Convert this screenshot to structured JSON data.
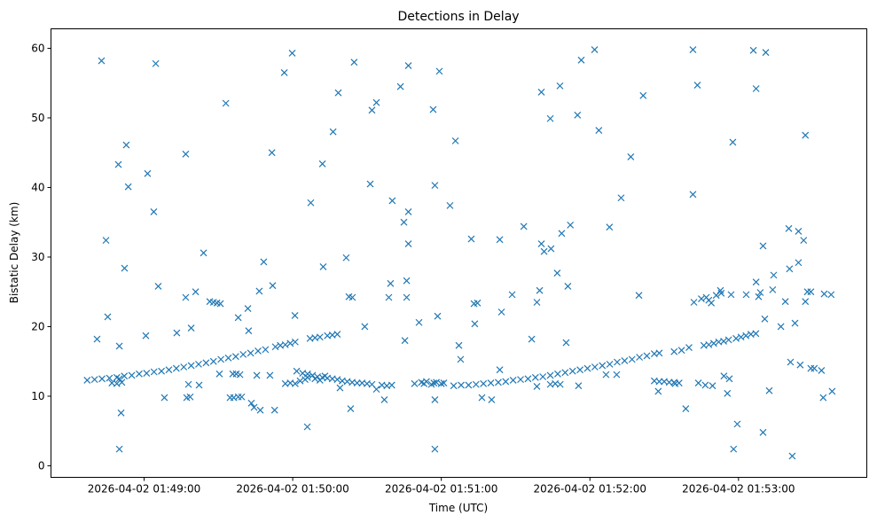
{
  "chart_data": {
    "type": "scatter",
    "title": "Detections in Delay",
    "xlabel": "Time (UTC)",
    "ylabel": "Bistatic Delay (km)",
    "x_units": "seconds after 2026-04-02 01:48:00 UTC",
    "xlim": [
      22.4,
      351.8
    ],
    "ylim": [
      -1.66,
      62.8
    ],
    "grid": false,
    "marker": "x",
    "color": "#1f77b4",
    "x_ticks": [
      {
        "value": 60,
        "label": "2026-04-02 01:49:00"
      },
      {
        "value": 120,
        "label": "2026-04-02 01:50:00"
      },
      {
        "value": 180,
        "label": "2026-04-02 01:51:00"
      },
      {
        "value": 240,
        "label": "2026-04-02 01:52:00"
      },
      {
        "value": 300,
        "label": "2026-04-02 01:53:00"
      }
    ],
    "y_ticks": [
      {
        "value": 0,
        "label": "0"
      },
      {
        "value": 10,
        "label": "10"
      },
      {
        "value": 20,
        "label": "20"
      },
      {
        "value": 30,
        "label": "30"
      },
      {
        "value": 40,
        "label": "40"
      },
      {
        "value": 50,
        "label": "50"
      },
      {
        "value": 60,
        "label": "60"
      }
    ],
    "points": [
      [
        37,
        12.3
      ],
      [
        40,
        12.4
      ],
      [
        43,
        12.5
      ],
      [
        46,
        12.6
      ],
      [
        49,
        12.7
      ],
      [
        52,
        12.9
      ],
      [
        55,
        13.0
      ],
      [
        58,
        13.2
      ],
      [
        61,
        13.3
      ],
      [
        64,
        13.5
      ],
      [
        67,
        13.6
      ],
      [
        70,
        13.8
      ],
      [
        73,
        14.0
      ],
      [
        76,
        14.2
      ],
      [
        79,
        14.4
      ],
      [
        82,
        14.6
      ],
      [
        85,
        14.8
      ],
      [
        88,
        15.0
      ],
      [
        91,
        15.3
      ],
      [
        94,
        15.5
      ],
      [
        97,
        15.7
      ],
      [
        100,
        16.0
      ],
      [
        103,
        16.2
      ],
      [
        106,
        16.5
      ],
      [
        109,
        16.7
      ],
      [
        113,
        17.1
      ],
      [
        115,
        17.3
      ],
      [
        117,
        17.4
      ],
      [
        119,
        17.6
      ],
      [
        121,
        17.8
      ],
      [
        47,
        11.9
      ],
      [
        49,
        11.8
      ],
      [
        51,
        12.0
      ],
      [
        50,
        12.5
      ],
      [
        127,
        18.3
      ],
      [
        129,
        18.4
      ],
      [
        131,
        18.5
      ],
      [
        134,
        18.7
      ],
      [
        136,
        18.8
      ],
      [
        138,
        18.9
      ],
      [
        117,
        11.8
      ],
      [
        119,
        11.9
      ],
      [
        121,
        11.8
      ],
      [
        123,
        12.2
      ],
      [
        125,
        12.4
      ],
      [
        124,
        13.3
      ],
      [
        126,
        13.2
      ],
      [
        128,
        13.0
      ],
      [
        130,
        12.8
      ],
      [
        132,
        12.7
      ],
      [
        134,
        12.6
      ],
      [
        136,
        12.5
      ],
      [
        138,
        12.4
      ],
      [
        140,
        12.2
      ],
      [
        142,
        12.1
      ],
      [
        144,
        12.0
      ],
      [
        146,
        11.9
      ],
      [
        148,
        11.9
      ],
      [
        150,
        11.8
      ],
      [
        152,
        11.7
      ],
      [
        126,
        12.7
      ],
      [
        129,
        12.5
      ],
      [
        131,
        12.3
      ],
      [
        133,
        12.9
      ],
      [
        156,
        11.6
      ],
      [
        158,
        11.5
      ],
      [
        160,
        11.6
      ],
      [
        172,
        12.0
      ],
      [
        173,
        11.8
      ],
      [
        174,
        12.1
      ],
      [
        176,
        11.7
      ],
      [
        177,
        11.9
      ],
      [
        178,
        12.0
      ],
      [
        180,
        11.8
      ],
      [
        181,
        11.9
      ],
      [
        185,
        11.5
      ],
      [
        188,
        11.6
      ],
      [
        191,
        11.6
      ],
      [
        194,
        11.7
      ],
      [
        197,
        11.8
      ],
      [
        200,
        11.9
      ],
      [
        203,
        12.0
      ],
      [
        206,
        12.1
      ],
      [
        209,
        12.3
      ],
      [
        212,
        12.4
      ],
      [
        215,
        12.5
      ],
      [
        218,
        12.7
      ],
      [
        221,
        12.8
      ],
      [
        224,
        13.0
      ],
      [
        227,
        13.2
      ],
      [
        230,
        13.4
      ],
      [
        233,
        13.6
      ],
      [
        236,
        13.8
      ],
      [
        239,
        14.0
      ],
      [
        242,
        14.2
      ],
      [
        245,
        14.4
      ],
      [
        248,
        14.6
      ],
      [
        251,
        14.9
      ],
      [
        254,
        15.1
      ],
      [
        257,
        15.3
      ],
      [
        260,
        15.6
      ],
      [
        263,
        15.8
      ],
      [
        266,
        16.1
      ],
      [
        268,
        16.2
      ],
      [
        224,
        11.7
      ],
      [
        226,
        11.8
      ],
      [
        228,
        11.7
      ],
      [
        266,
        12.2
      ],
      [
        268,
        12.1
      ],
      [
        270,
        12.1
      ],
      [
        272,
        12.0
      ],
      [
        274,
        12.0
      ],
      [
        276,
        11.9
      ],
      [
        274,
        16.4
      ],
      [
        277,
        16.6
      ],
      [
        280,
        17.0
      ],
      [
        286,
        17.3
      ],
      [
        288,
        17.4
      ],
      [
        290,
        17.6
      ],
      [
        292,
        17.8
      ],
      [
        294,
        17.9
      ],
      [
        296,
        18.1
      ],
      [
        299,
        18.3
      ],
      [
        301,
        18.5
      ],
      [
        303,
        18.7
      ],
      [
        305,
        18.9
      ],
      [
        307,
        19.0
      ],
      [
        285,
        24.0
      ],
      [
        287,
        24.2
      ],
      [
        289,
        23.4
      ],
      [
        291,
        24.5
      ],
      [
        293,
        24.8
      ],
      [
        288,
        23.8
      ],
      [
        41.0,
        18.2
      ],
      [
        42.8,
        58.2
      ],
      [
        44.6,
        32.4
      ],
      [
        45.3,
        21.4
      ],
      [
        49.6,
        43.3
      ],
      [
        50.0,
        17.2
      ],
      [
        50.7,
        7.6
      ],
      [
        50.0,
        2.4
      ],
      [
        52.1,
        28.4
      ],
      [
        52.8,
        46.1
      ],
      [
        53.6,
        40.1
      ],
      [
        60.7,
        18.7
      ],
      [
        61.4,
        42.0
      ],
      [
        63.9,
        36.5
      ],
      [
        64.7,
        57.8
      ],
      [
        65.7,
        25.8
      ],
      [
        68.2,
        9.8
      ],
      [
        73.2,
        19.1
      ],
      [
        76.8,
        44.8
      ],
      [
        76.8,
        24.2
      ],
      [
        77.2,
        9.8
      ],
      [
        77.9,
        11.7
      ],
      [
        79.0,
        19.8
      ],
      [
        78.6,
        9.9
      ],
      [
        80.8,
        25.0
      ],
      [
        82.2,
        11.6
      ],
      [
        84.0,
        30.6
      ],
      [
        86.5,
        23.6
      ],
      [
        88.0,
        23.5
      ],
      [
        89.4,
        23.4
      ],
      [
        90.8,
        23.3
      ],
      [
        90.4,
        13.2
      ],
      [
        93.0,
        52.1
      ],
      [
        94.7,
        9.8
      ],
      [
        96.2,
        9.8
      ],
      [
        98.0,
        9.9
      ],
      [
        99.4,
        9.9
      ],
      [
        95.8,
        13.2
      ],
      [
        97.2,
        13.2
      ],
      [
        98.0,
        21.3
      ],
      [
        98.7,
        13.1
      ],
      [
        101.9,
        22.6
      ],
      [
        102.2,
        19.4
      ],
      [
        103.3,
        9.0
      ],
      [
        104.4,
        8.4
      ],
      [
        105.5,
        13.0
      ],
      [
        106.5,
        25.1
      ],
      [
        106.9,
        8.0
      ],
      [
        108.3,
        29.3
      ],
      [
        110.8,
        13.0
      ],
      [
        111.6,
        45.0
      ],
      [
        111.9,
        25.9
      ],
      [
        112.7,
        8.0
      ],
      [
        116.6,
        56.5
      ],
      [
        119.8,
        59.3
      ],
      [
        120.9,
        21.6
      ],
      [
        121.6,
        13.6
      ],
      [
        125.9,
        5.6
      ],
      [
        127.3,
        37.8
      ],
      [
        132.0,
        43.4
      ],
      [
        132.3,
        28.6
      ],
      [
        136.3,
        48.0
      ],
      [
        138.4,
        53.6
      ],
      [
        139.1,
        11.2
      ],
      [
        141.6,
        29.9
      ],
      [
        142.7,
        24.3
      ],
      [
        144.1,
        24.2
      ],
      [
        143.4,
        8.2
      ],
      [
        144.8,
        58.0
      ],
      [
        149.1,
        20.0
      ],
      [
        151.3,
        40.5
      ],
      [
        152.0,
        51.1
      ],
      [
        153.8,
        52.2
      ],
      [
        153.8,
        11.0
      ],
      [
        157.0,
        9.5
      ],
      [
        158.8,
        24.2
      ],
      [
        159.5,
        26.2
      ],
      [
        160.2,
        38.1
      ],
      [
        163.5,
        54.5
      ],
      [
        164.9,
        35.0
      ],
      [
        165.3,
        18.0
      ],
      [
        166.0,
        26.6
      ],
      [
        166.0,
        24.2
      ],
      [
        166.7,
        57.5
      ],
      [
        166.7,
        36.5
      ],
      [
        166.7,
        31.9
      ],
      [
        169.2,
        11.8
      ],
      [
        171.0,
        20.6
      ],
      [
        176.7,
        51.2
      ],
      [
        177.4,
        40.3
      ],
      [
        177.4,
        9.5
      ],
      [
        177.4,
        2.4
      ],
      [
        178.5,
        21.5
      ],
      [
        179.2,
        56.7
      ],
      [
        183.5,
        37.4
      ],
      [
        185.7,
        46.7
      ],
      [
        187.1,
        17.3
      ],
      [
        187.8,
        15.3
      ],
      [
        192.1,
        32.6
      ],
      [
        193.2,
        23.3
      ],
      [
        193.5,
        20.4
      ],
      [
        194.6,
        23.4
      ],
      [
        196.4,
        9.8
      ],
      [
        200.3,
        9.5
      ],
      [
        203.6,
        32.5
      ],
      [
        204.3,
        22.1
      ],
      [
        203.6,
        13.8
      ],
      [
        208.6,
        24.6
      ],
      [
        213.3,
        34.4
      ],
      [
        216.5,
        18.2
      ],
      [
        218.6,
        11.4
      ],
      [
        218.6,
        23.5
      ],
      [
        219.7,
        25.2
      ],
      [
        220.4,
        53.7
      ],
      [
        220.4,
        31.9
      ],
      [
        221.5,
        30.8
      ],
      [
        224.0,
        49.9
      ],
      [
        224.3,
        31.2
      ],
      [
        226.8,
        27.7
      ],
      [
        227.9,
        54.6
      ],
      [
        228.6,
        33.4
      ],
      [
        230.4,
        17.7
      ],
      [
        231.1,
        25.8
      ],
      [
        232.1,
        34.6
      ],
      [
        235.0,
        50.4
      ],
      [
        235.4,
        11.5
      ],
      [
        236.5,
        58.3
      ],
      [
        241.9,
        59.8
      ],
      [
        243.6,
        48.2
      ],
      [
        246.5,
        13.1
      ],
      [
        247.9,
        34.3
      ],
      [
        250.8,
        13.1
      ],
      [
        252.6,
        38.5
      ],
      [
        256.5,
        44.4
      ],
      [
        259.8,
        24.5
      ],
      [
        261.5,
        53.2
      ],
      [
        267.6,
        10.7
      ],
      [
        274.4,
        11.8
      ],
      [
        278.7,
        8.2
      ],
      [
        281.6,
        59.8
      ],
      [
        281.6,
        39.0
      ],
      [
        282.0,
        23.5
      ],
      [
        283.4,
        54.7
      ],
      [
        283.8,
        11.9
      ],
      [
        286.6,
        11.6
      ],
      [
        289.5,
        11.5
      ],
      [
        292.7,
        25.2
      ],
      [
        294.1,
        12.9
      ],
      [
        295.5,
        10.4
      ],
      [
        296.3,
        12.5
      ],
      [
        297.0,
        24.6
      ],
      [
        297.7,
        46.5
      ],
      [
        298.0,
        2.4
      ],
      [
        299.5,
        6.0
      ],
      [
        303.1,
        24.6
      ],
      [
        306.0,
        59.7
      ],
      [
        307.1,
        54.2
      ],
      [
        307.1,
        26.4
      ],
      [
        308.1,
        24.3
      ],
      [
        308.8,
        24.9
      ],
      [
        309.9,
        31.6
      ],
      [
        309.9,
        4.8
      ],
      [
        310.6,
        21.1
      ],
      [
        311.0,
        59.4
      ],
      [
        312.4,
        10.8
      ],
      [
        313.8,
        25.3
      ],
      [
        314.2,
        27.4
      ],
      [
        317.1,
        20.0
      ],
      [
        318.9,
        23.6
      ],
      [
        320.3,
        34.1
      ],
      [
        320.6,
        28.3
      ],
      [
        321.0,
        14.9
      ],
      [
        321.7,
        1.4
      ],
      [
        322.8,
        20.5
      ],
      [
        324.2,
        33.7
      ],
      [
        324.2,
        29.2
      ],
      [
        324.9,
        14.5
      ],
      [
        326.3,
        32.4
      ],
      [
        327.0,
        47.5
      ],
      [
        327.0,
        23.6
      ],
      [
        327.8,
        25.0
      ],
      [
        329.2,
        25.0
      ],
      [
        329.2,
        14.0
      ],
      [
        330.6,
        14.0
      ],
      [
        333.5,
        13.7
      ],
      [
        334.2,
        9.8
      ],
      [
        334.6,
        24.7
      ],
      [
        337.4,
        24.6
      ],
      [
        337.8,
        10.7
      ]
    ]
  }
}
